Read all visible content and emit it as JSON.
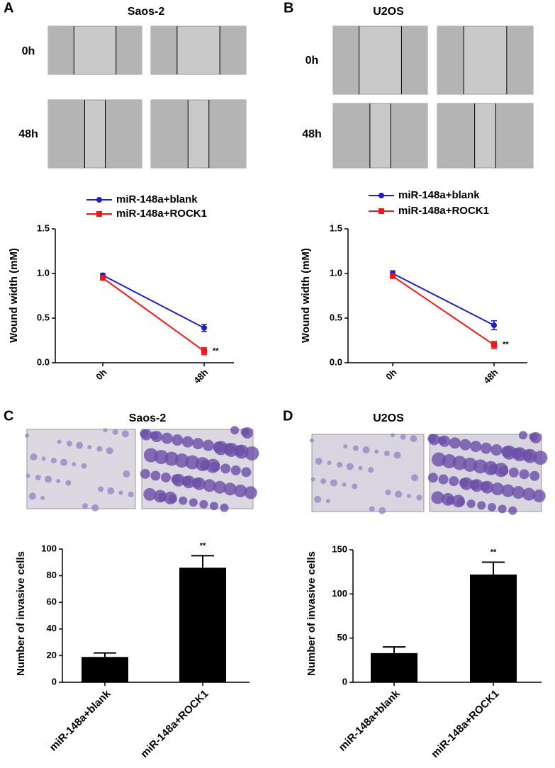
{
  "chart_data": [
    {
      "type": "line",
      "panel": "A",
      "title": "Saos-2",
      "image_rows": [
        "0h",
        "48h"
      ],
      "ylabel": "Wound width (mM)",
      "categories": [
        "0h",
        "48h"
      ],
      "series": [
        {
          "name": "miR-148a+blank",
          "color": "#1f1fbf",
          "values": [
            0.98,
            0.39
          ],
          "errors": [
            0.02,
            0.04
          ]
        },
        {
          "name": "miR-148a+ROCK1",
          "color": "#f01818",
          "values": [
            0.95,
            0.13
          ],
          "errors": [
            0.02,
            0.04
          ]
        }
      ],
      "ylim": [
        0,
        1.5
      ],
      "yticks": [
        {
          "value": 0,
          "label": "0.0"
        },
        0.5,
        {
          "value": 1,
          "label": "1.0"
        },
        1.5
      ],
      "annotation": "**"
    },
    {
      "type": "line",
      "panel": "B",
      "title": "U2OS",
      "image_rows": [
        "0h",
        "48h"
      ],
      "ylabel": "Wound width (mM)",
      "categories": [
        "0h",
        "48h"
      ],
      "series": [
        {
          "name": "miR-148a+blank",
          "color": "#1f1fbf",
          "values": [
            1.0,
            0.42
          ],
          "errors": [
            0.03,
            0.05
          ]
        },
        {
          "name": "miR-148a+ROCK1",
          "color": "#f01818",
          "values": [
            0.97,
            0.2
          ],
          "errors": [
            0.02,
            0.04
          ]
        }
      ],
      "ylim": [
        0,
        1.5
      ],
      "yticks": [
        {
          "value": 0,
          "label": "0.0"
        },
        0.5,
        {
          "value": 1,
          "label": "1.0"
        },
        1.5
      ],
      "annotation": "**"
    },
    {
      "type": "bar",
      "panel": "C",
      "title": "Saos-2",
      "ylabel": "Number of invasive cells",
      "categories": [
        "miR-148a+blank",
        "miR-148a+ROCK1"
      ],
      "values": [
        19,
        86
      ],
      "errors": [
        3,
        9
      ],
      "color": "#000000",
      "ylim": [
        0,
        100
      ],
      "yticks": [
        0,
        20,
        40,
        60,
        80,
        100
      ],
      "annotation": "**"
    },
    {
      "type": "bar",
      "panel": "D",
      "title": "U2OS",
      "ylabel": "Number of invasive cells",
      "categories": [
        "miR-148a+blank",
        "miR-148a+ROCK1"
      ],
      "values": [
        33,
        122
      ],
      "errors": [
        7,
        14
      ],
      "color": "#000000",
      "ylim": [
        0,
        150
      ],
      "yticks": [
        0,
        50,
        100,
        150
      ],
      "annotation": "**"
    }
  ]
}
